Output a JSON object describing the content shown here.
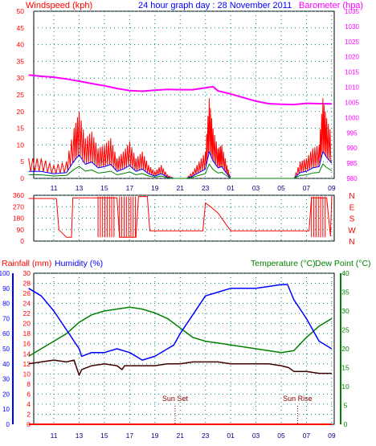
{
  "header": {
    "left": "Windspeed (kph)",
    "center": "24 hour graph day : 28 November 2011",
    "right": "Barometer (hpa)"
  },
  "bottom_header": {
    "rain": "Rainfall (mm)",
    "humidity": "Humidity (%)",
    "temp": "Temperature (°C)",
    "dew": "Dew Point (°C)"
  },
  "colors": {
    "wind": "#ff0000",
    "gust_blue": "#0000ff",
    "gust_green": "#008000",
    "baro": "#ff00ff",
    "dir": "#ff0000",
    "humidity": "#0000ff",
    "temp": "#008000",
    "dew": "#400000",
    "rain": "#ff0000",
    "grid": "#008080",
    "axis_blue": "#0000ff",
    "axis_green": "#008000"
  },
  "chart_data": [
    {
      "type": "line",
      "title": "24 hour graph day : 28 November 2011",
      "x_ticks": [
        "11",
        "13",
        "15",
        "17",
        "19",
        "21",
        "23",
        "01",
        "03",
        "05",
        "07",
        "09"
      ],
      "y_left": {
        "label": "Windspeed (kph)",
        "range": [
          0,
          50
        ],
        "ticks": [
          0,
          5,
          10,
          15,
          20,
          25,
          30,
          35,
          40,
          45,
          50
        ]
      },
      "y_right": {
        "label": "Barometer (hpa)",
        "range": [
          980,
          1035
        ],
        "ticks": [
          980,
          985,
          990,
          995,
          1000,
          1005,
          1010,
          1015,
          1020,
          1025,
          1030,
          1035
        ]
      },
      "series": [
        {
          "name": "Barometer (hpa)",
          "axis": "right",
          "x": [
            9,
            10,
            11,
            12,
            13,
            14,
            15,
            16,
            17,
            18,
            19,
            20,
            21,
            22,
            23,
            23.6,
            24,
            25,
            26,
            27,
            28,
            29,
            30,
            31,
            32,
            33
          ],
          "values": [
            1014,
            1013.6,
            1013.3,
            1012.7,
            1012,
            1011.2,
            1010.5,
            1009.6,
            1008.9,
            1008.7,
            1009,
            1009.3,
            1009.2,
            1009.2,
            1009.8,
            1010.2,
            1008.8,
            1007.8,
            1006.6,
            1005.4,
            1004.6,
            1004.4,
            1004.3,
            1004.7,
            1004.6,
            1004.5
          ]
        },
        {
          "name": "Windspeed (kph)",
          "axis": "left",
          "x": [
            9,
            10,
            11,
            12,
            12.6,
            13,
            13.5,
            14,
            14.5,
            15,
            15.5,
            16,
            16.5,
            17,
            17.5,
            18,
            18.5,
            19,
            19.5,
            20,
            20.5,
            21,
            21.5,
            22,
            22.5,
            23,
            23.3,
            23.6,
            24,
            24.3,
            24.7,
            25,
            25.5,
            26,
            27,
            28,
            29,
            30,
            30.5,
            31,
            31.5,
            32,
            32.3,
            32.6,
            33
          ],
          "values": [
            6,
            6,
            4,
            5,
            15,
            20,
            12,
            14,
            9,
            10,
            12,
            6,
            8,
            11,
            6,
            8,
            4,
            2,
            4,
            1,
            0,
            0,
            0,
            2,
            5,
            8,
            24,
            15,
            9,
            10,
            4,
            0,
            0,
            0,
            0,
            0,
            0,
            0,
            5,
            6,
            9,
            10,
            24,
            18,
            13
          ]
        }
      ]
    },
    {
      "type": "line",
      "title": "",
      "y_ticks": [
        "0",
        "90",
        "180",
        "270",
        "360"
      ],
      "y_right_labels": [
        "N",
        "W",
        "S",
        "E",
        "N"
      ],
      "series": [
        {
          "name": "",
          "x": [
            9,
            11.2,
            11.4,
            12,
            12.4,
            12.5,
            16,
            16.2,
            17.5,
            17.7,
            18.4,
            18.6,
            21.5,
            22.8,
            23,
            23.4,
            24,
            25,
            27.5,
            29.5,
            30.5,
            31.2,
            31.4,
            32.6,
            32.9,
            33
          ],
          "values": [
            335,
            335,
            90,
            30,
            30,
            340,
            340,
            30,
            30,
            350,
            350,
            80,
            80,
            80,
            300,
            270,
            220,
            80,
            80,
            80,
            80,
            80,
            340,
            340,
            40,
            355
          ]
        }
      ]
    },
    {
      "type": "line",
      "title": "",
      "y_left_rain": {
        "label": "Rainfall (mm)",
        "range": [
          0,
          100
        ],
        "ticks": [
          0,
          10,
          20,
          30,
          40,
          50,
          60,
          70,
          80,
          90,
          100
        ]
      },
      "y_left_hum": {
        "label": "Humidity (%)",
        "range": [
          0,
          30
        ],
        "ticks": [
          0,
          2,
          4,
          6,
          8,
          10,
          12,
          14,
          16,
          18,
          20,
          22,
          24,
          26,
          28,
          30
        ]
      },
      "y_right": {
        "label": "Temperature (°C)",
        "range": [
          0,
          40
        ],
        "ticks": [
          0,
          5,
          10,
          15,
          20,
          25,
          30,
          35,
          40
        ]
      },
      "annotations": [
        "Sun Set",
        "Sun Rise"
      ],
      "series": [
        {
          "name": "Temperature (°C)",
          "axis": "right",
          "x": [
            9,
            10,
            11,
            12,
            13,
            14,
            15,
            16,
            17,
            18,
            19,
            20,
            21,
            22,
            23,
            24,
            25,
            26,
            27,
            28,
            29,
            30,
            31,
            32,
            33
          ],
          "values": [
            18,
            20,
            22,
            24,
            27,
            29,
            30,
            30.5,
            31,
            30.5,
            29.5,
            28,
            25.5,
            23,
            22,
            21.5,
            21,
            20.5,
            20,
            19.5,
            19,
            19.5,
            23,
            26,
            28
          ]
        },
        {
          "name": "Humidity (%)",
          "axis": "right",
          "x": [
            9,
            10,
            11,
            12,
            13,
            13.2,
            14,
            15,
            16,
            17,
            18,
            19,
            20,
            20.5,
            21,
            22,
            23,
            24,
            25,
            26,
            27,
            28,
            29,
            29.5,
            30,
            31,
            32,
            33
          ],
          "values": [
            36,
            34,
            30,
            25,
            20,
            18,
            19,
            19,
            20,
            19,
            17,
            18,
            20,
            21,
            24,
            29,
            34,
            35,
            36,
            36,
            36,
            36.5,
            37,
            37,
            33,
            28,
            22,
            20
          ]
        },
        {
          "name": "Dew Point (°C)",
          "axis": "right",
          "x": [
            9,
            10,
            11,
            12,
            12.6,
            13,
            13.2,
            14,
            15,
            16,
            16.4,
            16.6,
            17,
            18,
            19,
            20,
            21,
            22,
            23,
            24,
            25,
            26,
            27,
            28,
            29,
            29.6,
            30,
            31,
            32,
            33
          ],
          "values": [
            16,
            16.5,
            17,
            16.5,
            17,
            13,
            14.5,
            15.5,
            16,
            15.5,
            14.5,
            15.5,
            15.5,
            15.5,
            15.5,
            16,
            16,
            16.5,
            16.5,
            16.5,
            16,
            16,
            16,
            16,
            15.5,
            15,
            14,
            14,
            13.5,
            13.5
          ]
        },
        {
          "name": "Rainfall (mm)",
          "axis": "rain",
          "x": [
            9,
            33
          ],
          "values": [
            0,
            0
          ]
        }
      ]
    }
  ]
}
